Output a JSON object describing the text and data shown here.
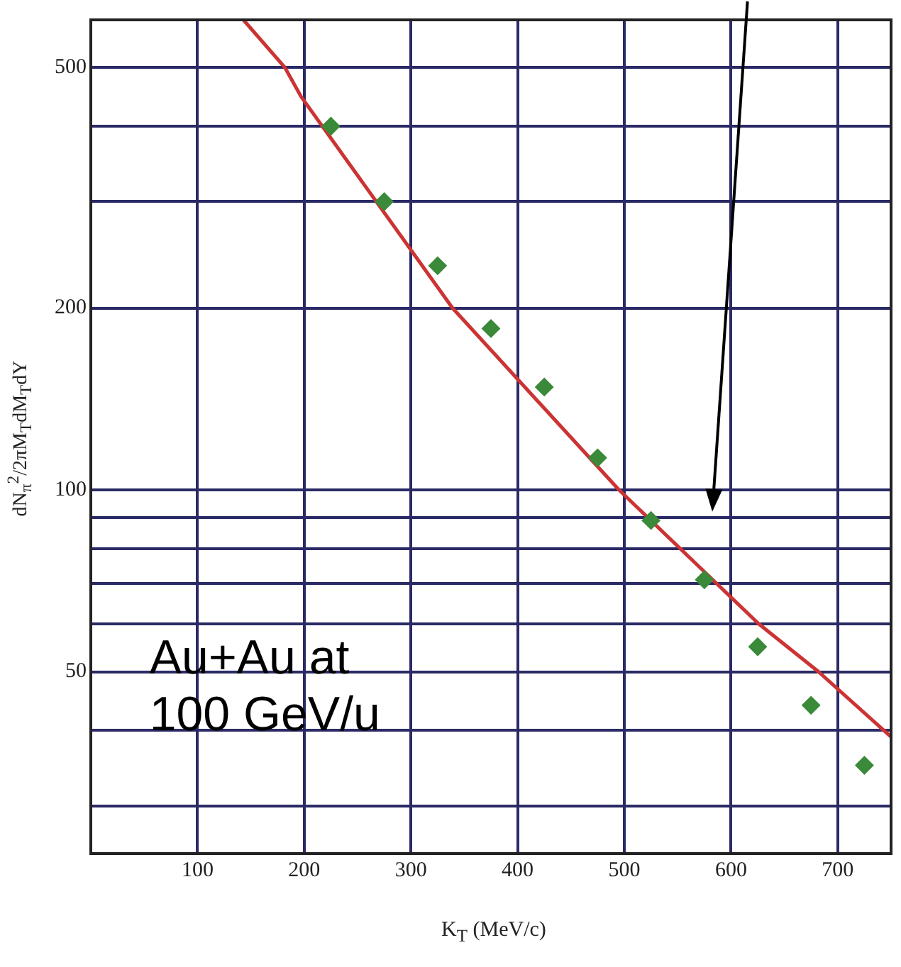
{
  "chart_data": {
    "type": "scatter",
    "xlabel": "K$_{T}$ (MeV/c)",
    "ylabel": "dN$_{π}$$^{2}$/2πM$_{T}$dM$_{T}$dY",
    "annotations": [
      "Au+Au at 100 GeV/u"
    ],
    "log": "y",
    "grid": true,
    "legend": false,
    "marker": "diamond",
    "xlim": [
      0,
      750
    ],
    "xticks": [
      100,
      200,
      300,
      400,
      500,
      600,
      700
    ],
    "ylim": [
      25,
      600
    ],
    "yticks": [
      {
        "value": 30,
        "label": null
      },
      {
        "value": 40,
        "label": null
      },
      50,
      {
        "value": 60,
        "label": null
      },
      {
        "value": 70,
        "label": null
      },
      {
        "value": 80,
        "label": null
      },
      {
        "value": 90,
        "label": null
      },
      100,
      200,
      {
        "value": 300,
        "label": null
      },
      {
        "value": 400,
        "label": null
      },
      500
    ],
    "series": [
      {
        "type": "scatter",
        "color": "#3a8a3a",
        "x": [
          225,
          275,
          325,
          375,
          425,
          475,
          525,
          575,
          625,
          675,
          725
        ],
        "values": [
          400,
          300,
          235,
          185,
          148,
          113,
          89,
          71,
          55,
          44,
          35
        ]
      },
      {
        "type": "line",
        "color": "#cc3333",
        "marker": "none",
        "x": [
          143,
          182,
          197,
          339,
          495,
          626,
          682,
          750
        ],
        "values": [
          600,
          500,
          448,
          200,
          100,
          60,
          50,
          39
        ]
      }
    ]
  }
}
